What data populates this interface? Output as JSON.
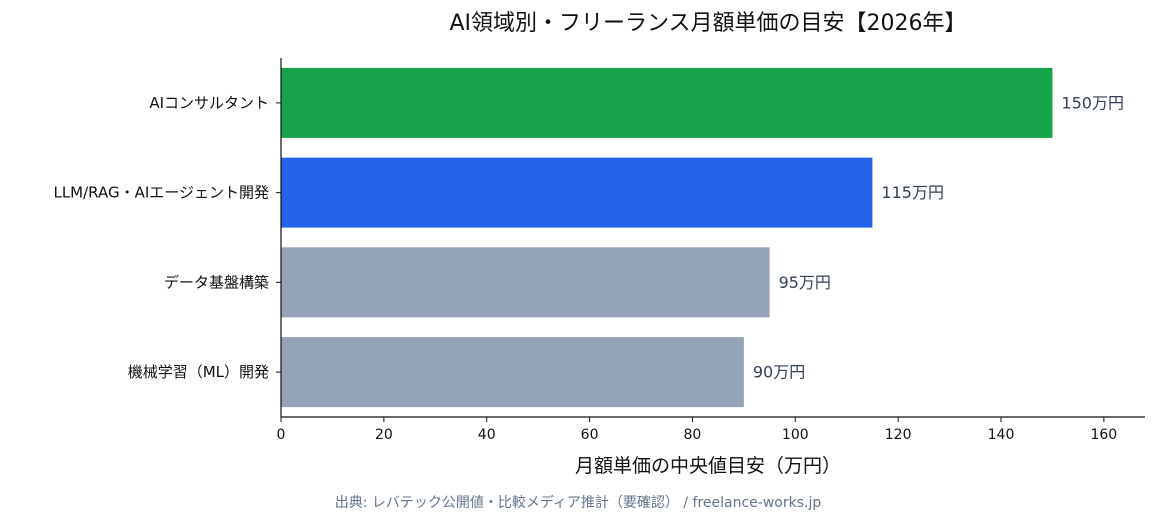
{
  "chart_data": {
    "type": "bar",
    "orientation": "horizontal",
    "title": "AI領域別・フリーランス月額単価の目安【2026年】",
    "xlabel": "月額単価の中央値目安（万円）",
    "ylabel": "",
    "xlim": [
      0,
      168
    ],
    "xticks": [
      0,
      20,
      40,
      60,
      80,
      100,
      120,
      140,
      160
    ],
    "grid": false,
    "categories": [
      "AIコンサルタント",
      "LLM/RAG・AIエージェント開発",
      "データ基盤構築",
      "機械学習（ML）開発"
    ],
    "values": [
      150,
      115,
      95,
      90
    ],
    "value_labels": [
      "150万円",
      "115万円",
      "95万円",
      "90万円"
    ],
    "colors": [
      "#16a34a",
      "#2563eb",
      "#94a3b8",
      "#94a3b8"
    ]
  },
  "source": "出典: レバテック公開値・比較メディア推計（要確認） / freelance-works.jp"
}
